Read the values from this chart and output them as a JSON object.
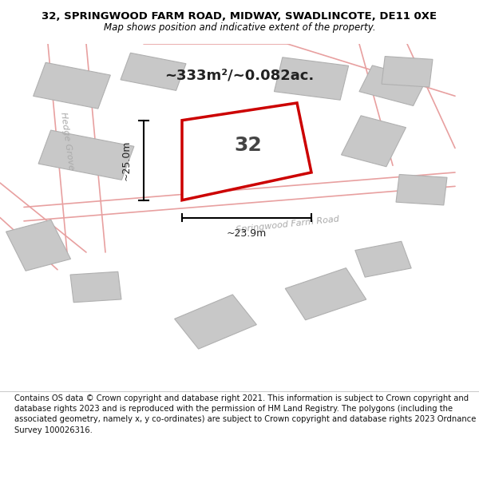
{
  "title_line1": "32, SPRINGWOOD FARM ROAD, MIDWAY, SWADLINCOTE, DE11 0XE",
  "title_line2": "Map shows position and indicative extent of the property.",
  "area_text": "~333m²/~0.082ac.",
  "number_label": "32",
  "dim_vertical": "~25.0m",
  "dim_horizontal": "~23.9m",
  "road_label": "Springwood Farm Road",
  "hedge_grove_label": "Hedge Grove",
  "footer_text": "Contains OS data © Crown copyright and database right 2021. This information is subject to Crown copyright and database rights 2023 and is reproduced with the permission of HM Land Registry. The polygons (including the associated geometry, namely x, y co-ordinates) are subject to Crown copyright and database rights 2023 Ordnance Survey 100026316.",
  "bg_color": "#f0ece4",
  "map_bg": "#f0ece4",
  "building_color": "#c8c8c8",
  "building_edge_color": "#b0b0b0",
  "road_line_color": "#e8a0a0",
  "plot_outline_color": "#cc0000",
  "plot_fill_color": "#ffffff",
  "dim_line_color": "#000000",
  "footer_bg": "#ffffff"
}
